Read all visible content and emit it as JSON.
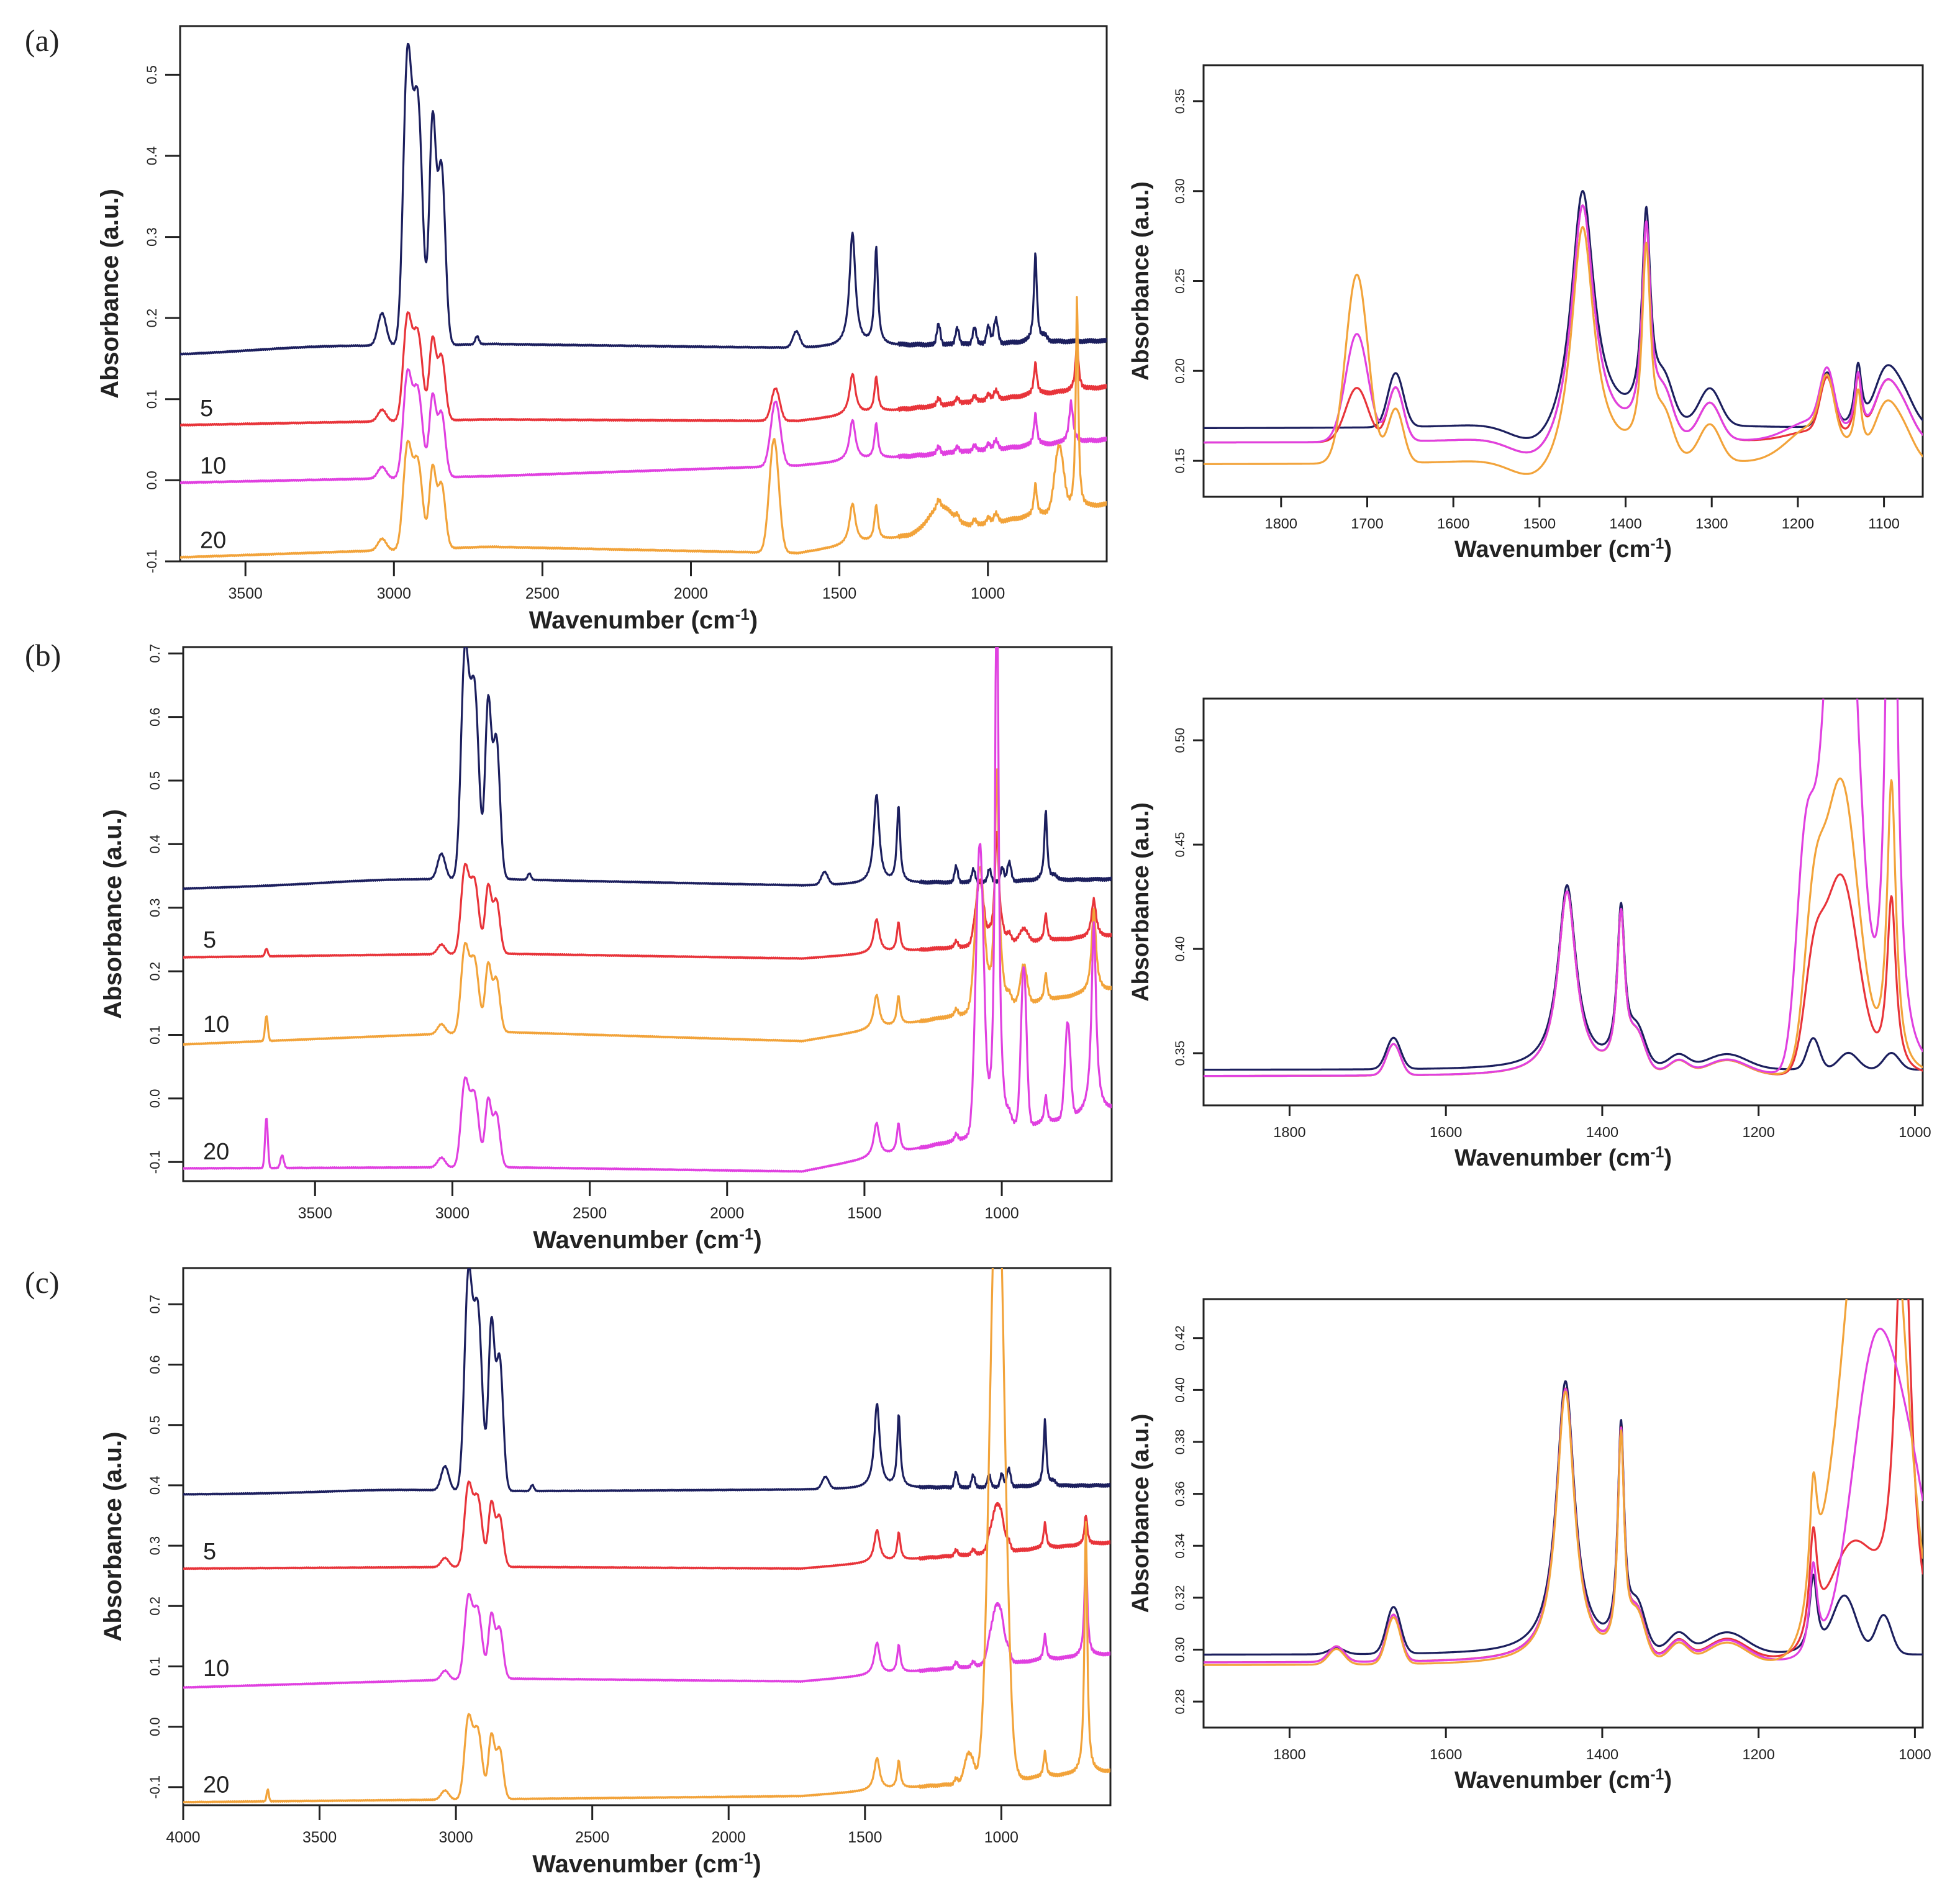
{
  "colors": {
    "navy": "#1c1f5e",
    "red": "#e8343a",
    "magenta": "#e040e0",
    "orange": "#f2a33a"
  },
  "panels": [
    {
      "letter": "(a)"
    },
    {
      "letter": "(b)"
    },
    {
      "letter": "(c)"
    }
  ],
  "chart_data": [
    {
      "id": "a-full",
      "type": "line",
      "panel": "(a)",
      "xlabel": "Wavenumber (cm",
      "xlabel_sup": "-1",
      "xlabel_end": ")",
      "ylabel": "Absorbance (a.u.)",
      "xlim": [
        3720,
        600
      ],
      "ylim": [
        -0.1,
        0.56
      ],
      "xticks": [
        3500,
        3000,
        2500,
        2000,
        1500,
        1000
      ],
      "yticks": [
        -0.1,
        0.0,
        0.1,
        0.2,
        0.3,
        0.4,
        0.5
      ],
      "ytick_labels": [
        "-0.1",
        "0.0",
        "0.1",
        "0.2",
        "0.3",
        "0.4",
        "0.5"
      ],
      "baseline_start_x": 3720,
      "series": [
        {
          "name": "0",
          "label": "",
          "color": "navy",
          "base": [
            0.155,
            0.168,
            0.163,
            0.172
          ],
          "scale": 1.0,
          "sig": [
            "oh0",
            "cc"
          ]
        },
        {
          "name": "5",
          "label": "5",
          "color": "red",
          "base": [
            0.068,
            0.075,
            0.073,
            0.115
          ],
          "scale": 0.36,
          "sig": [
            "co_small",
            "ext_red"
          ]
        },
        {
          "name": "10",
          "label": "10",
          "color": "magenta",
          "base": [
            -0.003,
            0.005,
            0.018,
            0.05
          ],
          "scale": 0.36,
          "sig": [
            "co_mid",
            "ext_mag"
          ]
        },
        {
          "name": "20",
          "label": "20",
          "color": "orange",
          "base": [
            -0.095,
            -0.082,
            -0.09,
            -0.03
          ],
          "scale": 0.36,
          "sig": [
            "co_big",
            "ext_or"
          ]
        }
      ]
    },
    {
      "id": "a-zoom",
      "type": "line",
      "panel": "(a)",
      "xlabel": "Wavenumber (cm",
      "xlabel_sup": "-1",
      "xlabel_end": ")",
      "ylabel": "Absorbance (a.u.)",
      "xlim": [
        1890,
        1055
      ],
      "ylim": [
        0.13,
        0.37
      ],
      "xticks": [
        1800,
        1700,
        1600,
        1500,
        1400,
        1300,
        1200,
        1100
      ],
      "yticks": [
        0.15,
        0.2,
        0.25,
        0.3,
        0.35
      ],
      "ytick_labels": [
        "0.15",
        "0.20",
        "0.25",
        "0.30",
        "0.35"
      ],
      "series": [
        {
          "name": "0",
          "color": "navy",
          "base": 0.168,
          "co": 0.0
        },
        {
          "name": "5",
          "color": "red",
          "base": 0.16,
          "co": 0.03
        },
        {
          "name": "10",
          "color": "magenta",
          "base": 0.16,
          "co": 0.06
        },
        {
          "name": "20",
          "color": "orange",
          "base": 0.148,
          "co": 0.105
        }
      ]
    },
    {
      "id": "b-full",
      "type": "line",
      "panel": "(b)",
      "xlabel": "Wavenumber (cm",
      "xlabel_sup": "-1",
      "xlabel_end": ")",
      "ylabel": "Absorbance (a.u.)",
      "xlim": [
        3980,
        600
      ],
      "ylim": [
        -0.13,
        0.71
      ],
      "xticks": [
        3500,
        3000,
        2500,
        2000,
        1500,
        1000
      ],
      "yticks": [
        -0.1,
        0.0,
        0.1,
        0.2,
        0.3,
        0.4,
        0.5,
        0.6,
        0.7
      ],
      "ytick_labels": [
        "-0.1",
        "0.0",
        "0.1",
        "0.2",
        "0.3",
        "0.4",
        "0.5",
        "0.6",
        "0.7"
      ],
      "series": [
        {
          "name": "0",
          "label": "",
          "color": "navy",
          "base": [
            0.33,
            0.345,
            0.335,
            0.345
          ],
          "scale": 1.0,
          "sig": [
            "oh0",
            "cc"
          ]
        },
        {
          "name": "5",
          "label": "5",
          "color": "red",
          "base": [
            0.222,
            0.228,
            0.22,
            0.255
          ],
          "scale": 0.38,
          "sig": [
            "talc_s",
            "silk_s"
          ]
        },
        {
          "name": "10",
          "label": "10",
          "color": "orange",
          "base": [
            0.085,
            0.105,
            0.09,
            0.17
          ],
          "scale": 0.38,
          "sig": [
            "talc_m",
            "silk_m"
          ]
        },
        {
          "name": "20",
          "label": "20",
          "color": "magenta",
          "base": [
            -0.11,
            -0.108,
            -0.115,
            -0.02
          ],
          "scale": 0.38,
          "sig": [
            "talc_b",
            "silk_b"
          ]
        }
      ]
    },
    {
      "id": "b-zoom",
      "type": "line",
      "panel": "(b)",
      "xlabel": "Wavenumber (cm",
      "xlabel_sup": "-1",
      "xlabel_end": ")",
      "ylabel": "Absorbance (a.u.)",
      "xlim": [
        1910,
        990
      ],
      "ylim": [
        0.325,
        0.52
      ],
      "xticks": [
        1800,
        1600,
        1400,
        1200,
        1000
      ],
      "yticks": [
        0.35,
        0.4,
        0.45,
        0.5
      ],
      "ytick_labels": [
        "0.35",
        "0.40",
        "0.45",
        "0.50"
      ],
      "series": [
        {
          "name": "0",
          "color": "navy",
          "base": 0.342,
          "fill": 0
        },
        {
          "name": "5",
          "color": "red",
          "base": 0.339,
          "fill": 1
        },
        {
          "name": "10",
          "color": "orange",
          "base": 0.339,
          "fill": 2
        },
        {
          "name": "20",
          "color": "magenta",
          "base": 0.339,
          "fill": 3
        }
      ]
    },
    {
      "id": "c-full",
      "type": "line",
      "panel": "(c)",
      "xlabel": "Wavenumber (cm",
      "xlabel_sup": "-1",
      "xlabel_end": ")",
      "ylabel": "Absorbance (a.u.)",
      "xlim": [
        4000,
        600
      ],
      "ylim": [
        -0.13,
        0.76
      ],
      "xticks": [
        4000,
        3500,
        3000,
        2500,
        2000,
        1500,
        1000
      ],
      "yticks": [
        -0.1,
        0.0,
        0.1,
        0.2,
        0.3,
        0.4,
        0.5,
        0.6,
        0.7
      ],
      "ytick_labels": [
        "-0.1",
        "0.0",
        "0.1",
        "0.2",
        "0.3",
        "0.4",
        "0.5",
        "0.6",
        "0.7"
      ],
      "series": [
        {
          "name": "0",
          "label": "",
          "color": "navy",
          "base": [
            0.385,
            0.39,
            0.393,
            0.4
          ],
          "scale": 1.0,
          "sig": [
            "oh0",
            "cc"
          ]
        },
        {
          "name": "5",
          "label": "5",
          "color": "red",
          "base": [
            0.262,
            0.265,
            0.262,
            0.305
          ],
          "scale": 0.38,
          "sig": [
            "none",
            "cv_s"
          ]
        },
        {
          "name": "10",
          "label": "10",
          "color": "magenta",
          "base": [
            0.065,
            0.08,
            0.075,
            0.12
          ],
          "scale": 0.38,
          "sig": [
            "none",
            "cv_m"
          ]
        },
        {
          "name": "20",
          "label": "20",
          "color": "orange",
          "base": [
            -0.125,
            -0.12,
            -0.115,
            -0.075
          ],
          "scale": 0.38,
          "sig": [
            "oh20",
            "cv_b"
          ]
        }
      ]
    },
    {
      "id": "c-zoom",
      "type": "line",
      "panel": "(c)",
      "xlabel": "Wavenumber (cm",
      "xlabel_sup": "-1",
      "xlabel_end": ")",
      "ylabel": "Absorbance (a.u.)",
      "xlim": [
        1910,
        990
      ],
      "ylim": [
        0.27,
        0.435
      ],
      "xticks": [
        1800,
        1600,
        1400,
        1200,
        1000
      ],
      "yticks": [
        0.28,
        0.3,
        0.32,
        0.34,
        0.36,
        0.38,
        0.4,
        0.42
      ],
      "ytick_labels": [
        "0.28",
        "0.30",
        "0.32",
        "0.34",
        "0.36",
        "0.38",
        "0.40",
        "0.42"
      ],
      "series": [
        {
          "name": "0",
          "color": "navy",
          "base": 0.298,
          "fill": 0
        },
        {
          "name": "5",
          "color": "red",
          "base": 0.295,
          "fill": 1
        },
        {
          "name": "10",
          "color": "magenta",
          "base": 0.295,
          "fill": 2
        },
        {
          "name": "20",
          "color": "orange",
          "base": 0.294,
          "fill": 3
        }
      ]
    }
  ]
}
